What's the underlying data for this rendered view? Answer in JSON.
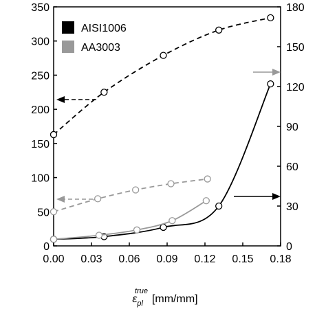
{
  "chart_data": {
    "type": "line",
    "xlabel": {
      "symbol": "ε",
      "sub": "pl",
      "sup": "true",
      "unit": "[mm/mm]"
    },
    "xlim": [
      0,
      0.18
    ],
    "xticks": [
      {
        "value": 0,
        "label": "0.00"
      },
      0.03,
      0.06,
      0.09,
      0.12,
      0.15,
      0.18
    ],
    "ylim": [
      0,
      350
    ],
    "yticks": [
      0,
      50,
      100,
      150,
      200,
      250,
      300,
      350
    ],
    "y2lim": [
      0,
      180
    ],
    "y2ticks": [
      0,
      30,
      60,
      90,
      120,
      150,
      180
    ],
    "legend": [
      {
        "name": "AISI1006",
        "color": "#000000"
      },
      {
        "name": "AA3003",
        "color": "#999999"
      }
    ],
    "series": [
      {
        "color": "#000000",
        "dash": true,
        "axis": "y",
        "x": [
          0,
          0.04,
          0.087,
          0.131,
          0.172
        ],
        "values": [
          163,
          225,
          279,
          316,
          334
        ]
      },
      {
        "color": "#999999",
        "dash": true,
        "axis": "y",
        "x": [
          0,
          0.035,
          0.065,
          0.093,
          0.122
        ],
        "values": [
          50,
          69,
          82,
          91,
          98
        ]
      },
      {
        "color": "#000000",
        "dash": false,
        "axis": "y2",
        "x": [
          0,
          0.04,
          0.087,
          0.131,
          0.172
        ],
        "values": [
          5,
          7,
          14,
          30,
          122
        ]
      },
      {
        "color": "#999999",
        "dash": false,
        "axis": "y2",
        "x": [
          0,
          0.036,
          0.066,
          0.094,
          0.121
        ],
        "values": [
          5,
          8,
          12,
          19,
          34
        ]
      }
    ]
  }
}
